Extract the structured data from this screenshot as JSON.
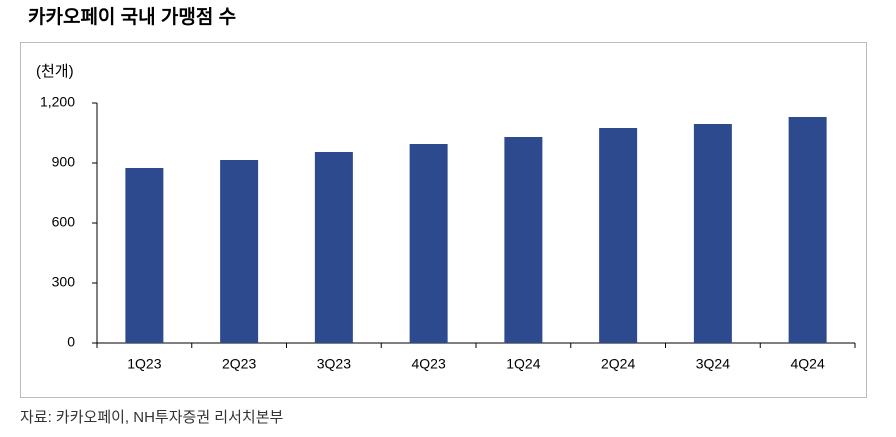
{
  "chart_data": {
    "type": "bar",
    "title": "카카오페이 국내 가맹점 수",
    "y_unit": "(천개)",
    "categories": [
      "1Q23",
      "2Q23",
      "3Q23",
      "4Q23",
      "1Q24",
      "2Q24",
      "3Q24",
      "4Q24"
    ],
    "values": [
      875,
      915,
      955,
      995,
      1030,
      1075,
      1095,
      1130
    ],
    "color": "#2e4a8e",
    "ylim": [
      0,
      1200
    ],
    "yticks": [
      0,
      300,
      600,
      900,
      {
        "value": 1200,
        "label": "1,200"
      }
    ],
    "grid": false,
    "source": "자료: 카카오페이, NH투자증권 리서치본부"
  }
}
